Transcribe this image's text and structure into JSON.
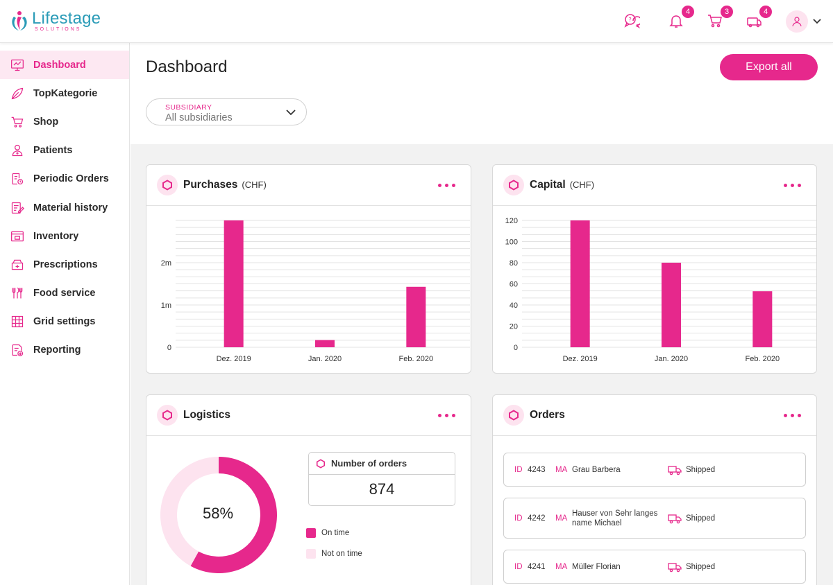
{
  "brand": {
    "name": "Lifestage",
    "sub": "SOLUTIONS"
  },
  "header": {
    "icons": [
      {
        "name": "support-chat-icon",
        "badge": ""
      },
      {
        "name": "bell-icon",
        "badge": "4"
      },
      {
        "name": "cart-icon",
        "badge": "3"
      },
      {
        "name": "delivery-icon",
        "badge": "4"
      }
    ]
  },
  "sidebar": {
    "items": [
      {
        "label": "Dashboard",
        "icon": "monitor-icon",
        "active": true
      },
      {
        "label": "TopKategorie",
        "icon": "leaf-icon"
      },
      {
        "label": "Shop",
        "icon": "cart-icon"
      },
      {
        "label": "Patients",
        "icon": "patient-icon"
      },
      {
        "label": "Periodic Orders",
        "icon": "periodic-orders-icon"
      },
      {
        "label": "Material history",
        "icon": "edit-list-icon"
      },
      {
        "label": "Inventory",
        "icon": "inventory-icon"
      },
      {
        "label": "Prescriptions",
        "icon": "prescription-icon"
      },
      {
        "label": "Food service",
        "icon": "cutlery-icon"
      },
      {
        "label": "Grid settings",
        "icon": "grid-icon"
      },
      {
        "label": "Reporting",
        "icon": "report-icon"
      }
    ]
  },
  "page": {
    "title": "Dashboard",
    "export_label": "Export all",
    "subsidiary": {
      "label": "SUBSIDIARY",
      "value": "All subsidiaries"
    }
  },
  "cards": {
    "purchases": {
      "title": "Purchases",
      "unit": "(CHF)"
    },
    "capital": {
      "title": "Capital",
      "unit": "(CHF)"
    },
    "logistics": {
      "title": "Logistics",
      "percent_label": "58%",
      "number_of_orders_label": "Number of orders",
      "number_of_orders": "874",
      "legend": [
        "On time",
        "Not on time"
      ]
    },
    "orders": {
      "title": "Orders",
      "id_label": "ID",
      "ma_label": "MA",
      "rows": [
        {
          "id": "4243",
          "name": "Grau Barbera",
          "status": "Shipped"
        },
        {
          "id": "4242",
          "name": "Hauser von Sehr langes name Michael",
          "status": "Shipped"
        },
        {
          "id": "4241",
          "name": "Müller Florian",
          "status": "Shipped"
        }
      ]
    }
  },
  "colors": {
    "accent": "#e6288c",
    "accent_light": "#fde3ef",
    "grid": "#e3e3e3"
  },
  "chart_data": [
    {
      "type": "bar",
      "title": "Purchases",
      "unit": "(CHF)",
      "categories": [
        "Dez. 2019",
        "Jan. 2020",
        "Feb. 2020"
      ],
      "values": [
        3000000,
        170000,
        1430000
      ],
      "ylim": [
        0,
        3000000
      ],
      "ticks": [
        {
          "v": 0,
          "label": "0"
        },
        {
          "v": 1000000,
          "label": "1m"
        },
        {
          "v": 2000000,
          "label": "2m"
        }
      ],
      "grid": true
    },
    {
      "type": "bar",
      "title": "Capital",
      "unit": "(CHF)",
      "categories": [
        "Dez. 2019",
        "Jan. 2020",
        "Feb. 2020"
      ],
      "values": [
        120,
        80,
        53
      ],
      "ylim": [
        0,
        120
      ],
      "ticks": [
        {
          "v": 0,
          "label": "0"
        },
        {
          "v": 20,
          "label": "20"
        },
        {
          "v": 40,
          "label": "40"
        },
        {
          "v": 60,
          "label": "60"
        },
        {
          "v": 80,
          "label": "80"
        },
        {
          "v": 100,
          "label": "100"
        },
        {
          "v": 120,
          "label": "120"
        }
      ],
      "grid": true
    },
    {
      "type": "pie",
      "title": "Logistics",
      "labels": [
        "On time",
        "Not on time"
      ],
      "values": [
        58,
        42
      ]
    }
  ]
}
